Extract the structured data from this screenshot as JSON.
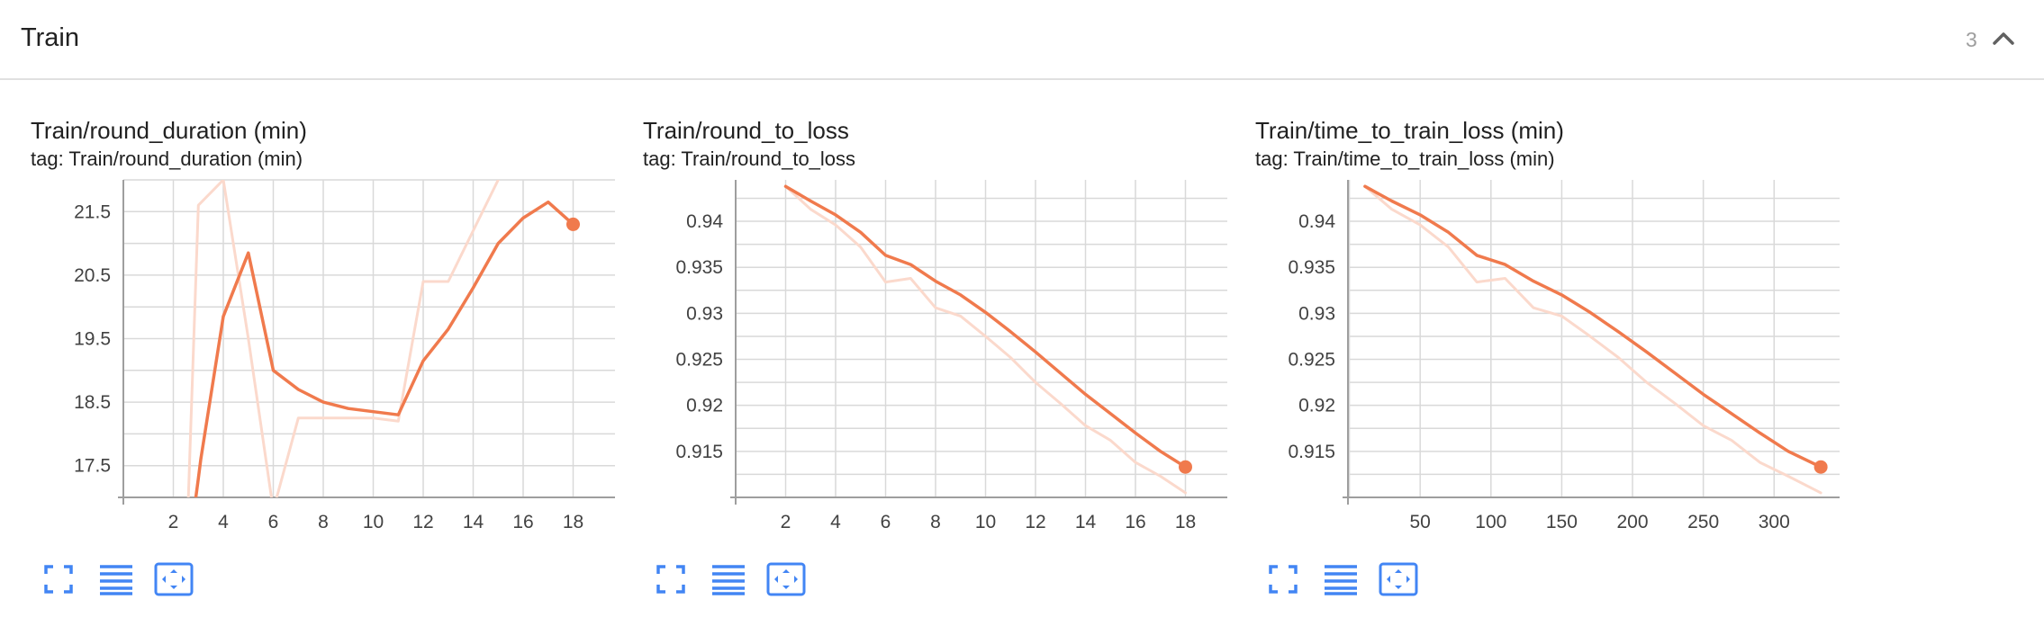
{
  "group": {
    "title": "Train",
    "count": "3",
    "collapse_icon": "chevron-up-icon"
  },
  "colors": {
    "smoothed": "#f07a4d",
    "raw": "#fbd9cc",
    "grid": "#d9d9d9",
    "toolbar_icon": "#4285f4"
  },
  "cards": [
    {
      "title": "Train/round_duration (min)",
      "tag": "tag: Train/round_duration (min)"
    },
    {
      "title": "Train/round_to_loss",
      "tag": "tag: Train/round_to_loss"
    },
    {
      "title": "Train/time_to_train_loss (min)",
      "tag": "tag: Train/time_to_train_loss (min)"
    }
  ],
  "toolbar": {
    "icons": [
      "fullscreen-icon",
      "data-table-icon",
      "fit-domain-icon"
    ]
  },
  "chart_data": [
    {
      "type": "line",
      "title": "Train/round_duration (min)",
      "xlim": [
        0,
        20
      ],
      "ylim": [
        17,
        22
      ],
      "xticks": [
        2,
        4,
        6,
        8,
        10,
        12,
        14,
        16,
        18
      ],
      "yticks": [
        17.5,
        18.5,
        19.5,
        20.5,
        21.5
      ],
      "ytick_labels": [
        "17.5",
        "18.5",
        "19.5",
        "20.5",
        "21.5"
      ],
      "grid": true,
      "series": [
        {
          "role": "smoothed",
          "x": [
            2.9,
            3,
            3.1,
            4,
            5,
            6,
            7,
            8,
            9,
            10,
            11,
            12,
            13,
            14,
            15,
            16,
            17,
            18
          ],
          "y": [
            17.0,
            17.3,
            17.6,
            19.85,
            20.85,
            19.0,
            18.7,
            18.5,
            18.4,
            18.35,
            18.3,
            19.15,
            19.65,
            20.3,
            21.0,
            21.4,
            21.65,
            21.3
          ]
        },
        {
          "role": "raw",
          "x": [
            2.6,
            3,
            4,
            5,
            6,
            7,
            8,
            9,
            10,
            11,
            12,
            13,
            14,
            15
          ],
          "y": [
            17.0,
            21.6,
            22.0,
            19.5,
            16.8,
            18.25,
            18.25,
            18.25,
            18.25,
            18.2,
            20.4,
            20.4,
            21.2,
            22.0
          ]
        }
      ],
      "end_marker": {
        "x": 18,
        "y": 21.3
      }
    },
    {
      "type": "line",
      "title": "Train/round_to_loss",
      "xlim": [
        0,
        20
      ],
      "ylim": [
        0.91,
        0.9445
      ],
      "xticks": [
        2,
        4,
        6,
        8,
        10,
        12,
        14,
        16,
        18
      ],
      "yticks": [
        0.915,
        0.92,
        0.925,
        0.93,
        0.935,
        0.94
      ],
      "ytick_labels": [
        "0.915",
        "0.92",
        "0.925",
        "0.93",
        "0.935",
        "0.94"
      ],
      "grid": true,
      "series": [
        {
          "role": "smoothed",
          "x": [
            2,
            3,
            4,
            5,
            6,
            7,
            8,
            9,
            10,
            11,
            12,
            13,
            14,
            15,
            16,
            17,
            18
          ],
          "y": [
            0.9438,
            0.9422,
            0.9407,
            0.9388,
            0.9363,
            0.9353,
            0.9335,
            0.932,
            0.9301,
            0.928,
            0.9258,
            0.9235,
            0.9212,
            0.9191,
            0.917,
            0.915,
            0.9133
          ]
        },
        {
          "role": "raw",
          "x": [
            2,
            3,
            4,
            5,
            6,
            7,
            8,
            9,
            10,
            11,
            12,
            13,
            14,
            15,
            16,
            17,
            18
          ],
          "y": [
            0.9438,
            0.9413,
            0.9396,
            0.9372,
            0.9334,
            0.9338,
            0.9306,
            0.9297,
            0.9275,
            0.9252,
            0.9225,
            0.9202,
            0.9178,
            0.9162,
            0.9138,
            0.9123,
            0.9105
          ]
        }
      ],
      "end_marker": {
        "x": 18,
        "y": 0.9133
      }
    },
    {
      "type": "line",
      "title": "Train/time_to_train_loss (min)",
      "xlim": [
        -1,
        352
      ],
      "ylim": [
        0.91,
        0.9445
      ],
      "xticks": [
        50,
        100,
        150,
        200,
        250,
        300
      ],
      "yticks": [
        0.915,
        0.92,
        0.925,
        0.93,
        0.935,
        0.94
      ],
      "ytick_labels": [
        "0.915",
        "0.92",
        "0.925",
        "0.93",
        "0.935",
        "0.94"
      ],
      "grid": true,
      "series": [
        {
          "role": "smoothed",
          "x": [
            11,
            30,
            50,
            70,
            90,
            110,
            130,
            150,
            170,
            190,
            210,
            230,
            250,
            270,
            290,
            310,
            333
          ],
          "y": [
            0.9438,
            0.9422,
            0.9407,
            0.9388,
            0.9363,
            0.9353,
            0.9335,
            0.932,
            0.9301,
            0.928,
            0.9258,
            0.9235,
            0.9212,
            0.9191,
            0.917,
            0.915,
            0.9133
          ]
        },
        {
          "role": "raw",
          "x": [
            11,
            30,
            50,
            70,
            90,
            110,
            130,
            150,
            170,
            190,
            210,
            230,
            250,
            270,
            290,
            310,
            333
          ],
          "y": [
            0.9438,
            0.9413,
            0.9396,
            0.9372,
            0.9334,
            0.9338,
            0.9306,
            0.9297,
            0.9275,
            0.9252,
            0.9225,
            0.9202,
            0.9178,
            0.9162,
            0.9138,
            0.9123,
            0.9105
          ]
        }
      ],
      "end_marker": {
        "x": 333,
        "y": 0.9133
      }
    }
  ]
}
